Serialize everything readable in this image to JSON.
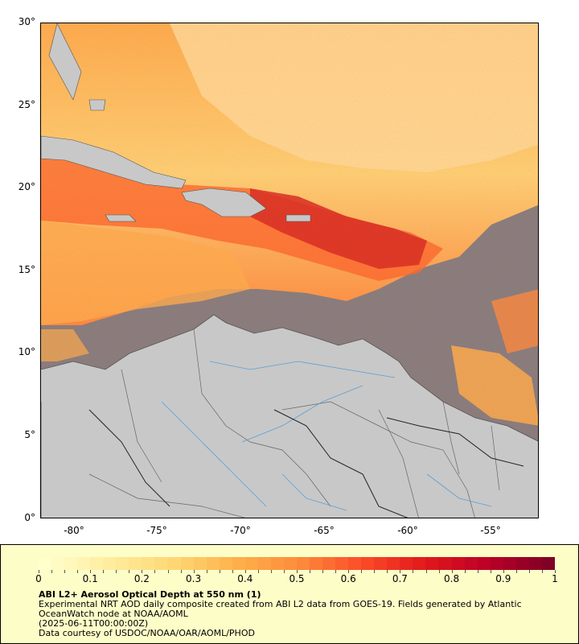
{
  "map": {
    "lat_ticks": [
      "30°",
      "25°",
      "20°",
      "15°",
      "10°",
      "5°",
      "0°"
    ],
    "lon_ticks": [
      "-80°",
      "-75°",
      "-70°",
      "-65°",
      "-60°",
      "-55°"
    ],
    "lon_range": [
      -82,
      -52
    ],
    "lat_range": [
      0,
      30
    ]
  },
  "legend": {
    "ticks": [
      "0",
      "0.1",
      "0.2",
      "0.3",
      "0.4",
      "0.5",
      "0.6",
      "0.7",
      "0.8",
      "0.9",
      "1"
    ],
    "colors": [
      "#ffffcc",
      "#ffeda0",
      "#fed976",
      "#feb24c",
      "#fd8d3c",
      "#fc4e2a",
      "#e31a1c",
      "#bd0026",
      "#800026"
    ]
  },
  "caption": {
    "title": "ABI L2+ Aerosol Optical Depth at 550 nm (1)",
    "line1": "Experimental NRT AOD daily composite created from ABI L2 data from GOES-19. Fields generated by Atlantic",
    "line2": "OceanWatch node at NOAA/AOML",
    "line3": "(2025-06-11T00:00:00Z)",
    "line4": "Data courtesy of USDOC/NOAA/OAR/AOML/PHOD"
  }
}
